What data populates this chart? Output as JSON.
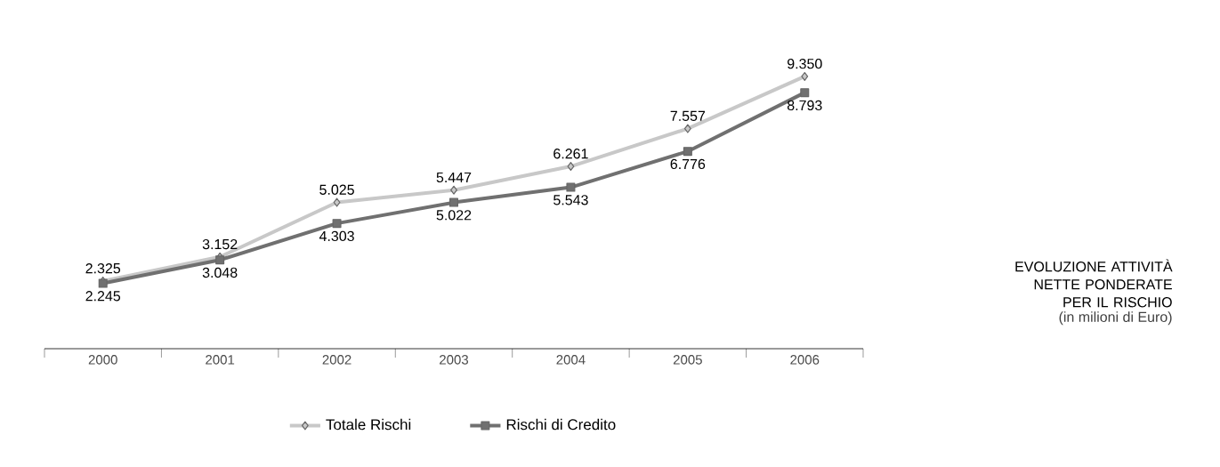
{
  "chart_data": {
    "type": "line",
    "title": "EVOLUZIONE ATTIVITÀ NETTE PONDERATE PER IL RISCHIO",
    "subtitle": "(in milioni di Euro)",
    "categories": [
      "2000",
      "2001",
      "2002",
      "2003",
      "2004",
      "2005",
      "2006"
    ],
    "series": [
      {
        "name": "Totale Rischi",
        "color": "#c8c8c8",
        "marker": "diamond",
        "values": [
          2325,
          3152,
          5025,
          5447,
          6261,
          7557,
          9350
        ],
        "value_labels": [
          "2.325",
          "3.152",
          "5.025",
          "5.447",
          "6.261",
          "7.557",
          "9.350"
        ]
      },
      {
        "name": "Rischi di Credito",
        "color": "#707070",
        "marker": "square",
        "values": [
          2245,
          3048,
          4303,
          5022,
          5543,
          6776,
          8793
        ],
        "value_labels": [
          "2.245",
          "3.048",
          "4.303",
          "5.022",
          "5.543",
          "6.776",
          "8.793"
        ]
      }
    ],
    "legend": "bottom",
    "grid": false
  }
}
